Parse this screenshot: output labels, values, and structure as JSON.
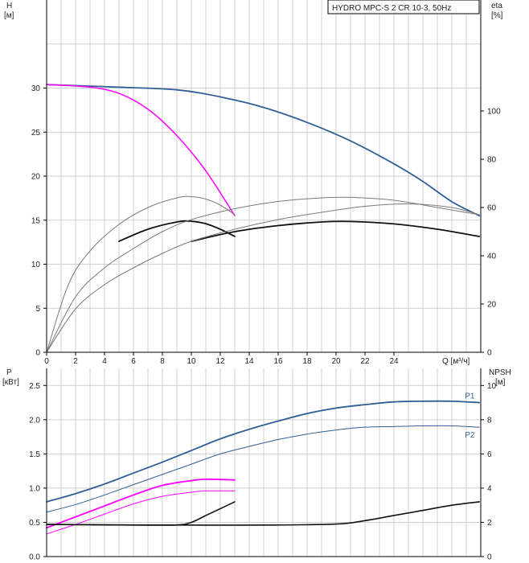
{
  "chart_data": [
    {
      "type": "line",
      "title": "HYDRO MPC-S 2 CR 10-3, 50Hz",
      "xlabel": "Q [м³/ч]",
      "ylabel_left": "H\n[м]",
      "ylabel_right": "eta\n[%]",
      "xlim": [
        0,
        30
      ],
      "ylim_left": [
        0,
        40
      ],
      "ylim_right": [
        0,
        146
      ],
      "grid": true,
      "x_ticks": [
        "0",
        "2",
        "4",
        "6",
        "8",
        "10",
        "12",
        "14",
        "16",
        "18",
        "20",
        "22",
        "24"
      ],
      "y_ticks_left": [
        "0",
        "5",
        "10",
        "15",
        "20",
        "25",
        "30"
      ],
      "y_ticks_right": [
        "0",
        "20",
        "40",
        "60",
        "80",
        "100"
      ],
      "colors": {
        "blue": "#2f5f96",
        "magenta": "#ff00ff",
        "black": "#111111",
        "gray": "#7a7a7a"
      },
      "series": [
        {
          "axis": "left",
          "color": "blue",
          "width": 1.8,
          "x": [
            0,
            5,
            9,
            12,
            15,
            18,
            21,
            24,
            26,
            28,
            29.9
          ],
          "y": [
            30.4,
            30.1,
            29.8,
            29.0,
            27.8,
            26.1,
            24.0,
            21.4,
            19.4,
            17.1,
            15.5
          ]
        },
        {
          "axis": "left",
          "color": "magenta",
          "width": 1.5,
          "x": [
            0,
            3,
            5,
            7,
            9,
            11,
            13
          ],
          "y": [
            30.4,
            30.1,
            29.4,
            27.6,
            24.6,
            20.6,
            15.5
          ]
        },
        {
          "axis": "right",
          "color": "gray",
          "width": 1,
          "x": [
            0,
            1.5,
            3,
            5,
            7,
            9,
            10,
            11,
            12,
            13
          ],
          "y": [
            0,
            28,
            42,
            53,
            60,
            64,
            64.5,
            63.5,
            61,
            57
          ]
        },
        {
          "axis": "right",
          "color": "black",
          "width": 1.8,
          "x": [
            5,
            7,
            9,
            10,
            11,
            12,
            13
          ],
          "y": [
            46,
            51,
            54,
            54.3,
            53.3,
            51,
            48
          ]
        },
        {
          "axis": "right",
          "color": "gray",
          "width": 1,
          "x": [
            0,
            2,
            4,
            6,
            8,
            10,
            13,
            16,
            19,
            21,
            24,
            27,
            29.9
          ],
          "y": [
            0,
            23,
            35,
            43,
            50,
            55,
            59.5,
            62.5,
            64,
            64.2,
            63,
            60,
            57
          ]
        },
        {
          "axis": "right",
          "color": "black",
          "width": 1.8,
          "x": [
            10,
            13,
            16,
            19,
            21,
            24,
            27,
            29.9
          ],
          "y": [
            46,
            50,
            52.5,
            54,
            54.2,
            53.2,
            51,
            48
          ]
        },
        {
          "axis": "right",
          "color": "gray",
          "width": 1,
          "x": [
            0,
            2,
            4,
            6,
            8,
            10,
            13,
            16,
            19,
            22,
            25,
            28,
            29.9
          ],
          "y": [
            0,
            18,
            28,
            35,
            41,
            46,
            51,
            55,
            58,
            60.5,
            61.5,
            60,
            57
          ]
        }
      ]
    },
    {
      "type": "line",
      "xlabel": "",
      "ylabel_left": "P\n[кВт]",
      "ylabel_right": "NPSH\n[м]",
      "xlim": [
        0,
        30
      ],
      "ylim_left": [
        0,
        2.75
      ],
      "ylim_right": [
        0,
        11
      ],
      "grid": true,
      "y_ticks_left": [
        "0.0",
        "0.5",
        "1.0",
        "1.5",
        "2.0",
        "2.5"
      ],
      "y_ticks_right": [
        "0",
        "2",
        "4",
        "6",
        "8",
        "10"
      ],
      "colors": {
        "blue": "#2f5f96",
        "magenta": "#ff00ff",
        "black": "#111111"
      },
      "series": [
        {
          "name": "P1",
          "axis": "left",
          "color": "blue",
          "width": 1.8,
          "x": [
            0,
            2,
            4,
            6,
            8,
            10,
            12,
            14,
            16,
            18,
            20,
            22,
            24,
            26,
            28,
            29.9
          ],
          "y": [
            0.8,
            0.92,
            1.06,
            1.22,
            1.38,
            1.55,
            1.72,
            1.86,
            1.98,
            2.09,
            2.17,
            2.22,
            2.26,
            2.27,
            2.27,
            2.25
          ]
        },
        {
          "name": "P2",
          "axis": "left",
          "color": "blue",
          "width": 1,
          "x": [
            0,
            2,
            4,
            6,
            8,
            10,
            12,
            14,
            16,
            18,
            20,
            22,
            24,
            26,
            28,
            29.9
          ],
          "y": [
            0.65,
            0.76,
            0.9,
            1.05,
            1.2,
            1.35,
            1.5,
            1.61,
            1.71,
            1.79,
            1.85,
            1.89,
            1.9,
            1.91,
            1.91,
            1.89
          ]
        },
        {
          "axis": "left",
          "color": "magenta",
          "width": 1.8,
          "x": [
            0,
            2,
            4,
            6,
            8,
            10,
            11,
            13
          ],
          "y": [
            0.42,
            0.58,
            0.74,
            0.9,
            1.04,
            1.11,
            1.13,
            1.12
          ]
        },
        {
          "axis": "left",
          "color": "magenta",
          "width": 1,
          "x": [
            0,
            2,
            4,
            6,
            8,
            10,
            11,
            13
          ],
          "y": [
            0.33,
            0.47,
            0.62,
            0.77,
            0.88,
            0.94,
            0.96,
            0.96
          ]
        },
        {
          "axis": "right",
          "color": "black",
          "width": 1.6,
          "x": [
            0,
            3,
            6,
            9,
            10,
            11,
            12,
            13
          ],
          "y": [
            1.88,
            1.86,
            1.84,
            1.85,
            2.0,
            2.4,
            2.8,
            3.2
          ]
        },
        {
          "axis": "right",
          "color": "black",
          "width": 1.6,
          "x": [
            0,
            5,
            10,
            15,
            20,
            22,
            24,
            26,
            28,
            29.9
          ],
          "y": [
            1.88,
            1.85,
            1.84,
            1.84,
            1.9,
            2.1,
            2.4,
            2.7,
            3.0,
            3.2
          ]
        }
      ]
    }
  ]
}
